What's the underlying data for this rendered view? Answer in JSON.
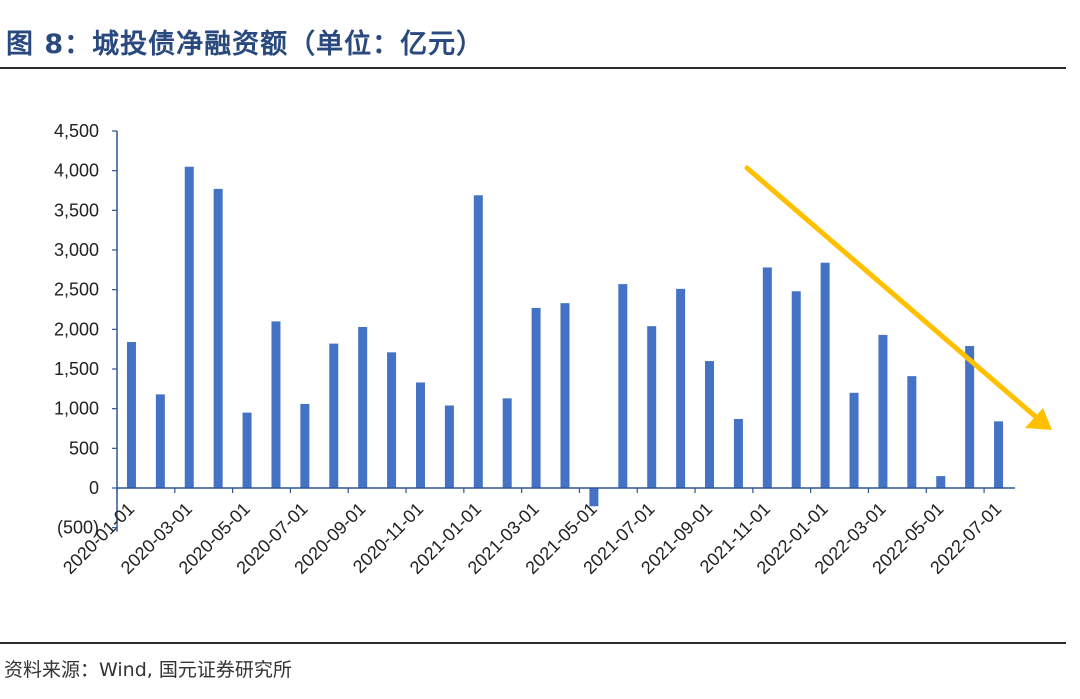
{
  "header": {
    "title": "图 8：城投债净融资额（单位：亿元）"
  },
  "footer": {
    "source": "资料来源：Wind, 国元证券研究所"
  },
  "chart_data": {
    "type": "bar",
    "title": "图 8：城投债净融资额（单位：亿元）",
    "xlabel": "",
    "ylabel": "",
    "ylim": [
      -500,
      4500
    ],
    "yticks": [
      -500,
      0,
      500,
      1000,
      1500,
      2000,
      2500,
      3000,
      3500,
      4000,
      4500
    ],
    "ytick_labels": [
      "(500)",
      "0",
      "500",
      "1,000",
      "1,500",
      "2,000",
      "2,500",
      "3,000",
      "3,500",
      "4,000",
      "4,500"
    ],
    "negative_label_color": "#e00000",
    "bar_color": "#4472c4",
    "trend_arrow_color": "#ffc000",
    "categories": [
      "2020-01-01",
      "2020-02-01",
      "2020-03-01",
      "2020-04-01",
      "2020-05-01",
      "2020-06-01",
      "2020-07-01",
      "2020-08-01",
      "2020-09-01",
      "2020-10-01",
      "2020-11-01",
      "2020-12-01",
      "2021-01-01",
      "2021-02-01",
      "2021-03-01",
      "2021-04-01",
      "2021-05-01",
      "2021-06-01",
      "2021-07-01",
      "2021-08-01",
      "2021-09-01",
      "2021-10-01",
      "2021-11-01",
      "2021-12-01",
      "2022-01-01",
      "2022-02-01",
      "2022-03-01",
      "2022-04-01",
      "2022-05-01",
      "2022-06-01",
      "2022-07-01"
    ],
    "x_tick_labels": [
      "2020-01-01",
      "2020-03-01",
      "2020-05-01",
      "2020-07-01",
      "2020-09-01",
      "2020-11-01",
      "2021-01-01",
      "2021-03-01",
      "2021-05-01",
      "2021-07-01",
      "2021-09-01",
      "2021-11-01",
      "2022-01-01",
      "2022-03-01",
      "2022-05-01",
      "2022-07-01"
    ],
    "values": [
      1840,
      1180,
      4050,
      3770,
      950,
      2100,
      1060,
      1820,
      2030,
      1710,
      1330,
      1040,
      3690,
      1130,
      2270,
      2330,
      -230,
      2570,
      2040,
      2510,
      1600,
      870,
      2780,
      2480,
      2840,
      1200,
      1930,
      1410,
      150,
      1790,
      840
    ],
    "grid": false,
    "legend": "none"
  }
}
